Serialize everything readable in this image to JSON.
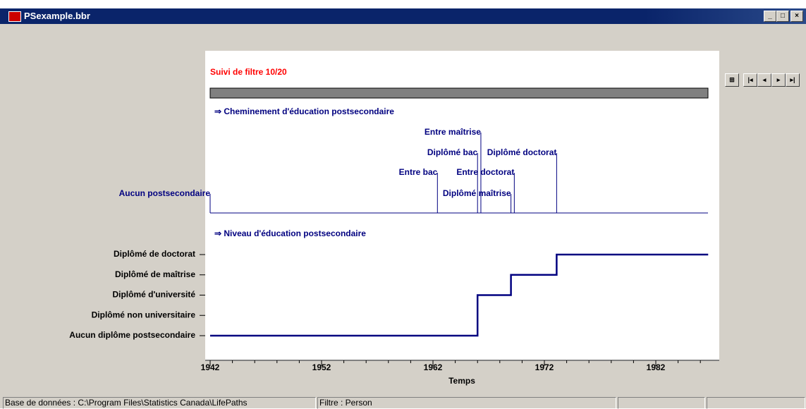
{
  "window": {
    "title": "PSexample.bbr"
  },
  "status_bar": [
    "Base de données : C:\\Program Files\\Statistics Canada\\LifePaths",
    "Filtre : Person"
  ],
  "chart_data": {
    "type": "timeline",
    "title": "Suivi de filtre 10/20",
    "x_label": "Temps",
    "xlim": [
      1942,
      1987.7
    ],
    "xticks": [
      1942,
      1952,
      1962,
      1972,
      1982
    ],
    "xminorticks": [
      1944,
      1946,
      1948,
      1950,
      1954,
      1956,
      1958,
      1960,
      1964,
      1966,
      1968,
      1970,
      1974,
      1976,
      1978,
      1980,
      1984,
      1986
    ],
    "color": "#000080",
    "events": {
      "title": "⇒  Cheminement d'éducation postsecondaire",
      "categories": [
        "Aucun postsecondaire",
        "Entre bac",
        "Diplômé bac",
        "Entre maîtrise",
        "Diplômé maîtrise",
        "Entre doctorat",
        "Diplômé doctorat"
      ],
      "x": [
        1942,
        1962.4,
        1966.0,
        1966.3,
        1969.0,
        1969.3,
        1973.1
      ]
    },
    "levels": {
      "title": "⇒  Niveau d'éducation postsecondaire",
      "categories": [
        "Aucun diplôme postsecondaire",
        "Diplômé non universitaire",
        "Diplômé d'université",
        "Diplômé de maîtrise",
        "Diplômé de doctorat"
      ],
      "x": [
        1942,
        1966.0,
        1969.0,
        1973.1,
        1986.7
      ],
      "values": [
        0,
        2,
        3,
        4,
        4
      ]
    }
  }
}
